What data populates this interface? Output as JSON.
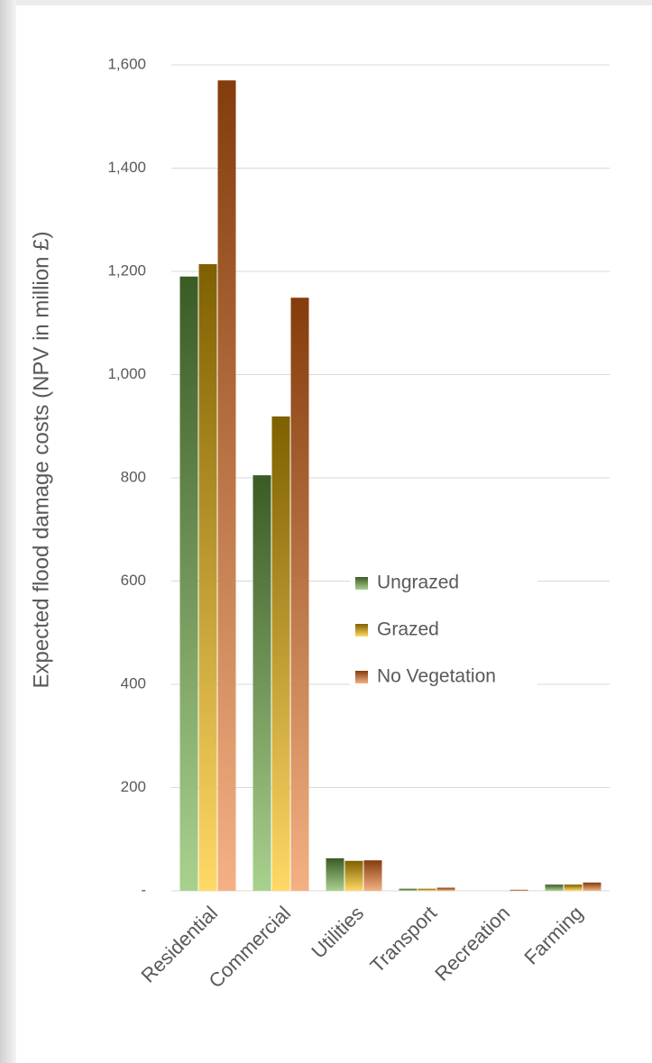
{
  "chart_data": {
    "type": "bar",
    "y_label": "Expected flood damage costs (NPV in million £)",
    "categories": [
      "Residential",
      "Commercial",
      "Utilities",
      "Transport",
      "Recreation",
      "Farming"
    ],
    "series": [
      {
        "name": "Ungrazed",
        "color": "#3b5b25",
        "gradient_end": "#a9d18e",
        "values": [
          1190,
          805,
          63,
          4,
          0,
          12
        ]
      },
      {
        "name": "Grazed",
        "color": "#7f6000",
        "gradient_end": "#ffd966",
        "values": [
          1214,
          919,
          58,
          4,
          0,
          12
        ]
      },
      {
        "name": "No Vegetation",
        "color": "#843c0c",
        "gradient_end": "#f4b183",
        "values": [
          1570,
          1149,
          59,
          6,
          2,
          16
        ]
      }
    ],
    "ylim": [
      0,
      1600
    ],
    "yticks": [
      {
        "value": 0,
        "label": "-"
      },
      200,
      400,
      600,
      800,
      {
        "value": 1000,
        "label": "1,000"
      },
      {
        "value": 1200,
        "label": "1,200"
      },
      {
        "value": 1400,
        "label": "1,400"
      },
      {
        "value": 1600,
        "label": "1,600"
      }
    ],
    "grid": true,
    "legend": "center-right"
  }
}
